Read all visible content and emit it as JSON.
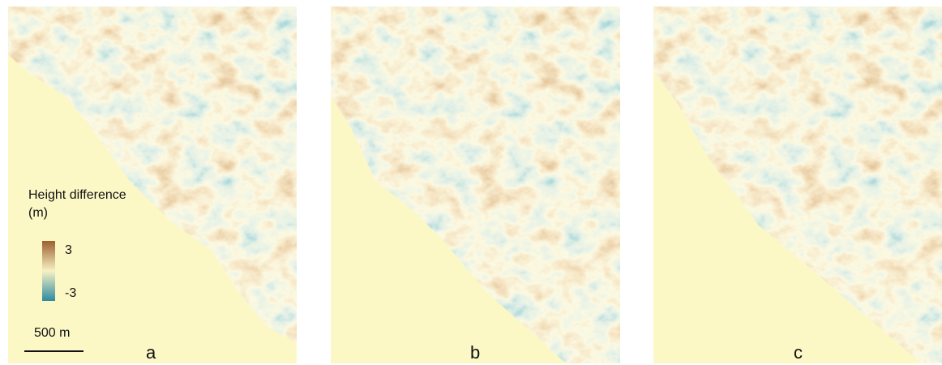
{
  "legend": {
    "title": "Height difference (m)",
    "max": "3",
    "min": "-3"
  },
  "scale_bar": {
    "label": "500 m"
  },
  "panels": [
    {
      "label": "a"
    },
    {
      "label": "b"
    },
    {
      "label": "c"
    }
  ]
}
